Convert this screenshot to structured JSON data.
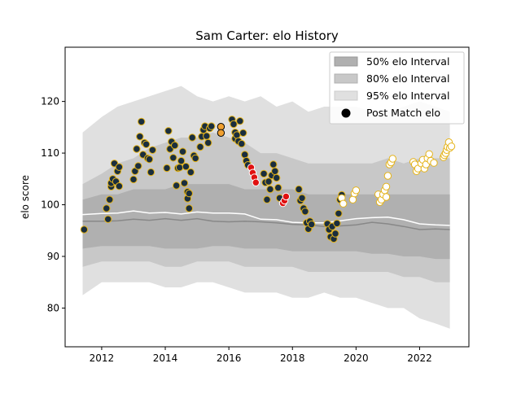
{
  "chart_data": {
    "type": "scatter",
    "title": "Sam Carter: elo History",
    "xlabel": "",
    "ylabel": "elo score",
    "xlim": [
      2010.85,
      2023.55
    ],
    "ylim": [
      72.5,
      130.5
    ],
    "xticks": [
      2012,
      2014,
      2016,
      2018,
      2020,
      2022
    ],
    "yticks": [
      80,
      90,
      100,
      110,
      120
    ],
    "legend_position": "top-right",
    "legend": {
      "i50": "50% elo Interval",
      "i80": "80% elo Interval",
      "i95": "95% elo Interval",
      "post": "Post Match elo"
    },
    "colors": {
      "band50": "#b0b0b0",
      "band80": "#c8c8c8",
      "band95": "#e0e0e0",
      "median_line": "#888888",
      "mean_line": "#ffffff",
      "point_face": "#1a2e3e",
      "point_gold": "#e5b318",
      "point_red": "#e01010",
      "point_white": "#ffffff",
      "point_orange": "#f0a030"
    },
    "bands": {
      "x": [
        2011.4,
        2012.0,
        2012.5,
        2013.0,
        2013.5,
        2014.0,
        2014.5,
        2015.0,
        2015.5,
        2016.0,
        2016.5,
        2017.0,
        2017.5,
        2018.0,
        2018.5,
        2019.0,
        2019.5,
        2020.0,
        2020.5,
        2021.0,
        2021.5,
        2022.0,
        2022.5,
        2022.95
      ],
      "p95_upper": [
        114,
        117,
        119,
        120,
        121,
        122,
        123,
        121,
        120,
        121,
        120,
        121,
        119,
        120,
        118,
        119,
        119,
        119,
        118,
        118,
        119,
        120,
        119,
        118
      ],
      "p95_lower": [
        82.5,
        85,
        85,
        85,
        85,
        84,
        84,
        85,
        85,
        84,
        83,
        83,
        83,
        82,
        82,
        83,
        82,
        82,
        81,
        80,
        80,
        78,
        77,
        76
      ],
      "p80_upper": [
        104,
        106,
        108,
        109,
        111,
        112,
        113,
        113,
        114,
        113,
        112,
        110,
        110,
        109,
        108,
        108,
        108,
        108,
        108,
        109,
        108,
        109,
        109,
        109
      ],
      "p80_lower": [
        88,
        89,
        89,
        89,
        89,
        88,
        88,
        89,
        89,
        89,
        88,
        88,
        88,
        88,
        87,
        87,
        87,
        87,
        87,
        87,
        86,
        86,
        85,
        85
      ],
      "p50_upper": [
        101,
        102,
        102,
        103,
        103,
        103,
        104,
        104,
        104,
        104,
        103,
        103,
        103,
        103,
        102,
        102,
        102,
        102,
        102,
        102,
        102,
        102,
        102,
        102
      ],
      "p50_lower": [
        91.5,
        92,
        92,
        92,
        92,
        91.5,
        91.5,
        91.5,
        92,
        92,
        91.5,
        91.5,
        91.5,
        91,
        91,
        91,
        91,
        91,
        90.5,
        90.5,
        90,
        90,
        89.5,
        89.5
      ],
      "median": [
        96.8,
        96.8,
        96.9,
        97.2,
        97.0,
        97.3,
        97.0,
        97.3,
        96.8,
        96.7,
        96.8,
        96.7,
        96.5,
        96.2,
        96.1,
        95.8,
        95.9,
        96.1,
        96.6,
        96.3,
        95.8,
        95.2,
        95.3,
        95.2
      ],
      "mean": [
        98.1,
        98.3,
        98.4,
        98.8,
        98.4,
        98.5,
        98.2,
        98.6,
        98.4,
        98.4,
        98.2,
        97.2,
        97.1,
        96.6,
        96.5,
        96.5,
        96.9,
        97.3,
        97.5,
        97.6,
        97.1,
        96.3,
        96.1,
        96.0
      ]
    },
    "series": [
      {
        "name": "Post Match elo",
        "style": "dark-gold",
        "points": [
          [
            2011.45,
            95.2
          ],
          [
            2012.15,
            99.3
          ],
          [
            2012.2,
            97.2
          ],
          [
            2012.25,
            101.0
          ],
          [
            2012.3,
            103.5
          ],
          [
            2012.3,
            104.2
          ],
          [
            2012.35,
            105.0
          ],
          [
            2012.4,
            108.0
          ],
          [
            2012.45,
            104.5
          ],
          [
            2012.5,
            106.5
          ],
          [
            2012.55,
            107.3
          ],
          [
            2012.55,
            103.6
          ],
          [
            2013.0,
            104.9
          ],
          [
            2013.05,
            106.5
          ],
          [
            2013.1,
            110.8
          ],
          [
            2013.15,
            107.5
          ],
          [
            2013.2,
            113.2
          ],
          [
            2013.25,
            116.1
          ],
          [
            2013.3,
            109.7
          ],
          [
            2013.35,
            112.0
          ],
          [
            2013.4,
            111.7
          ],
          [
            2013.45,
            109.0
          ],
          [
            2013.5,
            108.8
          ],
          [
            2013.55,
            106.3
          ],
          [
            2013.6,
            110.6
          ],
          [
            2014.05,
            107.1
          ],
          [
            2014.1,
            114.3
          ],
          [
            2014.15,
            110.8
          ],
          [
            2014.2,
            112.2
          ],
          [
            2014.25,
            109.1
          ],
          [
            2014.3,
            111.5
          ],
          [
            2014.35,
            103.7
          ],
          [
            2014.4,
            107.1
          ],
          [
            2014.45,
            107.2
          ],
          [
            2014.5,
            108.5
          ],
          [
            2014.55,
            110.3
          ],
          [
            2014.6,
            104.2
          ],
          [
            2014.65,
            107.4
          ],
          [
            2014.7,
            102.5
          ],
          [
            2014.7,
            101.2
          ],
          [
            2014.75,
            99.3
          ],
          [
            2014.75,
            102.2
          ],
          [
            2014.8,
            106.3
          ],
          [
            2014.85,
            113.0
          ],
          [
            2014.9,
            109.5
          ],
          [
            2014.95,
            109.0
          ],
          [
            2015.1,
            111.2
          ],
          [
            2015.15,
            113.2
          ],
          [
            2015.2,
            114.5
          ],
          [
            2015.25,
            115.2
          ],
          [
            2015.3,
            113.3
          ],
          [
            2015.35,
            112.0
          ],
          [
            2015.4,
            114.8
          ],
          [
            2015.45,
            115.2
          ],
          [
            2016.1,
            116.5
          ],
          [
            2016.15,
            115.6
          ],
          [
            2016.2,
            114.0
          ],
          [
            2016.2,
            112.8
          ],
          [
            2016.25,
            113.5
          ],
          [
            2016.3,
            112.3
          ],
          [
            2016.35,
            116.2
          ],
          [
            2016.4,
            111.8
          ],
          [
            2016.45,
            113.9
          ],
          [
            2016.5,
            109.7
          ],
          [
            2016.55,
            108.5
          ],
          [
            2016.6,
            107.7
          ],
          [
            2017.1,
            106.0
          ],
          [
            2017.15,
            104.3
          ],
          [
            2017.2,
            101.0
          ],
          [
            2017.25,
            104.5
          ],
          [
            2017.3,
            103.0
          ],
          [
            2017.35,
            105.7
          ],
          [
            2017.4,
            107.8
          ],
          [
            2017.45,
            106.5
          ],
          [
            2017.5,
            105.2
          ],
          [
            2017.55,
            103.3
          ],
          [
            2017.6,
            101.3
          ],
          [
            2018.2,
            103.0
          ],
          [
            2018.25,
            100.8
          ],
          [
            2018.3,
            101.3
          ],
          [
            2018.35,
            99.3
          ],
          [
            2018.4,
            98.7
          ],
          [
            2018.45,
            96.5
          ],
          [
            2018.5,
            95.3
          ],
          [
            2018.55,
            96.8
          ],
          [
            2018.6,
            96.2
          ],
          [
            2019.1,
            96.3
          ],
          [
            2019.15,
            95.2
          ],
          [
            2019.2,
            93.8
          ],
          [
            2019.25,
            95.8
          ],
          [
            2019.3,
            93.4
          ],
          [
            2019.35,
            94.4
          ],
          [
            2019.4,
            96.4
          ],
          [
            2019.45,
            98.3
          ],
          [
            2019.5,
            101.0
          ],
          [
            2019.55,
            101.9
          ]
        ]
      },
      {
        "name": "Post Match elo",
        "style": "red",
        "points": [
          [
            2016.7,
            107.2
          ],
          [
            2016.75,
            106.2
          ],
          [
            2016.8,
            105.3
          ],
          [
            2016.85,
            104.3
          ],
          [
            2017.7,
            100.3
          ],
          [
            2017.75,
            100.8
          ],
          [
            2017.8,
            101.6
          ]
        ]
      },
      {
        "name": "Post Match elo",
        "style": "white-gold",
        "points": [
          [
            2019.55,
            101.3
          ],
          [
            2019.6,
            100.2
          ],
          [
            2019.9,
            101.0
          ],
          [
            2019.95,
            102.2
          ],
          [
            2020.0,
            102.8
          ],
          [
            2020.7,
            102.0
          ],
          [
            2020.75,
            100.5
          ],
          [
            2020.8,
            101.0
          ],
          [
            2020.85,
            102.0
          ],
          [
            2020.9,
            102.8
          ],
          [
            2020.95,
            103.5
          ],
          [
            2020.95,
            101.5
          ],
          [
            2021.0,
            105.6
          ],
          [
            2021.05,
            107.8
          ],
          [
            2021.1,
            108.2
          ],
          [
            2021.15,
            108.9
          ],
          [
            2021.8,
            108.3
          ],
          [
            2021.85,
            107.8
          ],
          [
            2021.9,
            106.5
          ],
          [
            2021.95,
            107.0
          ],
          [
            2022.05,
            108.0
          ],
          [
            2022.1,
            108.7
          ],
          [
            2022.15,
            107.0
          ],
          [
            2022.2,
            107.8
          ],
          [
            2022.25,
            109.0
          ],
          [
            2022.3,
            109.8
          ],
          [
            2022.35,
            108.5
          ],
          [
            2022.45,
            108.1
          ],
          [
            2022.75,
            109.2
          ],
          [
            2022.78,
            109.6
          ],
          [
            2022.82,
            110.0
          ],
          [
            2022.85,
            110.6
          ],
          [
            2022.88,
            111.2
          ],
          [
            2022.92,
            112.1
          ],
          [
            2022.95,
            111.0
          ],
          [
            2023.0,
            111.3
          ]
        ]
      },
      {
        "name": "Post Match elo",
        "style": "orange",
        "points": [
          [
            2015.75,
            115.1
          ],
          [
            2015.75,
            113.9
          ]
        ]
      }
    ]
  }
}
